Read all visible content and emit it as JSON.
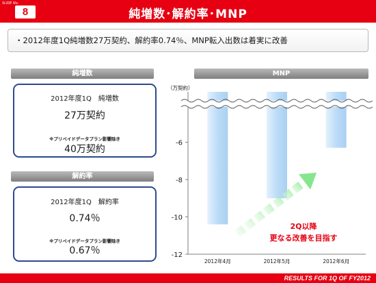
{
  "header": {
    "slide_label": "SLIDE No.",
    "slide_number": "8",
    "title": "純増数･解約率･MNP"
  },
  "summary": {
    "bullet": "・",
    "text": "2012年度1Q純増数27万契約、解約率0.74％、MNP転入出数は着実に改善"
  },
  "net_adds": {
    "header": "純増数",
    "period_label": "2012年度1Q　純増数",
    "value": "27万契約",
    "note": "※プリペイドデータプラン影響除き",
    "adjusted_value": "40万契約"
  },
  "churn": {
    "header": "解約率",
    "period_label": "2012年度1Q　解約率",
    "value": "0.74％",
    "note": "※プリペイドデータプラン影響除き",
    "adjusted_value": "0.67％"
  },
  "mnp": {
    "header": "MNP",
    "annotation_line1": "2Q以降",
    "annotation_line2": "更なる改善を目指す"
  },
  "colors": {
    "brand_red": "#e60012",
    "box_border": "#2c4a8c",
    "bar_light": "#e3f1fd",
    "bar_mid": "#a9d0f2",
    "arrow_green": "#86e68d",
    "annotation_red": "#e60012"
  },
  "chart_data": {
    "type": "bar",
    "unit_label": "（万契約）",
    "categories": [
      "2012年4月",
      "2012年5月",
      "2012年6月"
    ],
    "values": [
      -10.4,
      -9.0,
      -6.3
    ],
    "ylim": [
      -12,
      -4
    ],
    "yticks": [
      -6,
      -8,
      -10,
      -12
    ],
    "axis_break": true,
    "grid": false
  },
  "footer": {
    "text": "RESULTS FOR 1Q OF FY2012"
  }
}
